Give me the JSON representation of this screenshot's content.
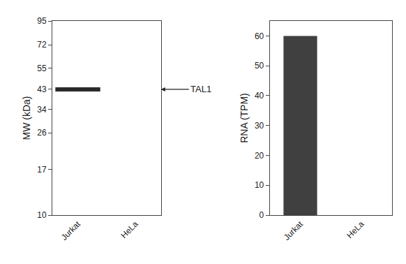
{
  "chart_data": [
    {
      "type": "blot",
      "ylabel": "MW (kDa)",
      "categories": [
        "Jurkat",
        "HeLa"
      ],
      "values": [
        43,
        null
      ],
      "color": "#2a2a2a",
      "log": "y",
      "ylim": [
        10,
        95
      ],
      "yticks": [
        95,
        72,
        55,
        43,
        34,
        26,
        17,
        10
      ],
      "annotations": [
        {
          "text": "TAL1",
          "y": 43
        }
      ],
      "grid": false
    },
    {
      "type": "bar",
      "ylabel": "RNA (TPM)",
      "categories": [
        "Jurkat",
        "HeLa"
      ],
      "values": [
        60,
        0
      ],
      "color": "#404040",
      "ylim": [
        0,
        65
      ],
      "yticks": [
        0,
        10,
        20,
        30,
        40,
        50,
        60
      ],
      "grid": false
    }
  ]
}
